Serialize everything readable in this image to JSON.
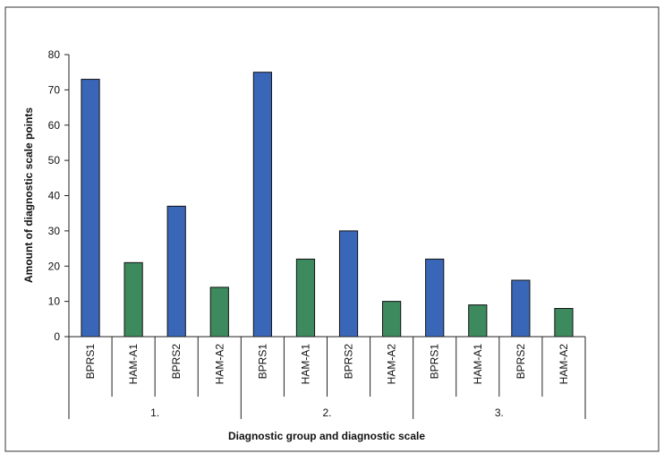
{
  "chart_data": {
    "type": "bar",
    "title": "",
    "xlabel": "Diagnostic group and diagnostic scale",
    "ylabel": "Amount of diagnostic scale points",
    "ylim": [
      0,
      80
    ],
    "yticks": [
      0,
      10,
      20,
      30,
      40,
      50,
      60,
      70,
      80
    ],
    "grid": false,
    "colors": {
      "BPRS": "#3a66b8",
      "HAM-A": "#3d8a5e"
    },
    "groups": [
      {
        "label": "1.",
        "bars": [
          {
            "category": "BPRS1",
            "value": 73
          },
          {
            "category": "HAM-A1",
            "value": 21
          },
          {
            "category": "BPRS2",
            "value": 37
          },
          {
            "category": "HAM-A2",
            "value": 14
          }
        ]
      },
      {
        "label": "2.",
        "bars": [
          {
            "category": "BPRS1",
            "value": 75
          },
          {
            "category": "HAM-A1",
            "value": 22
          },
          {
            "category": "BPRS2",
            "value": 30
          },
          {
            "category": "HAM-A2",
            "value": 10
          }
        ]
      },
      {
        "label": "3.",
        "bars": [
          {
            "category": "BPRS1",
            "value": 22
          },
          {
            "category": "HAM-A1",
            "value": 9
          },
          {
            "category": "BPRS2",
            "value": 16
          },
          {
            "category": "HAM-A2",
            "value": 8
          }
        ]
      }
    ]
  }
}
